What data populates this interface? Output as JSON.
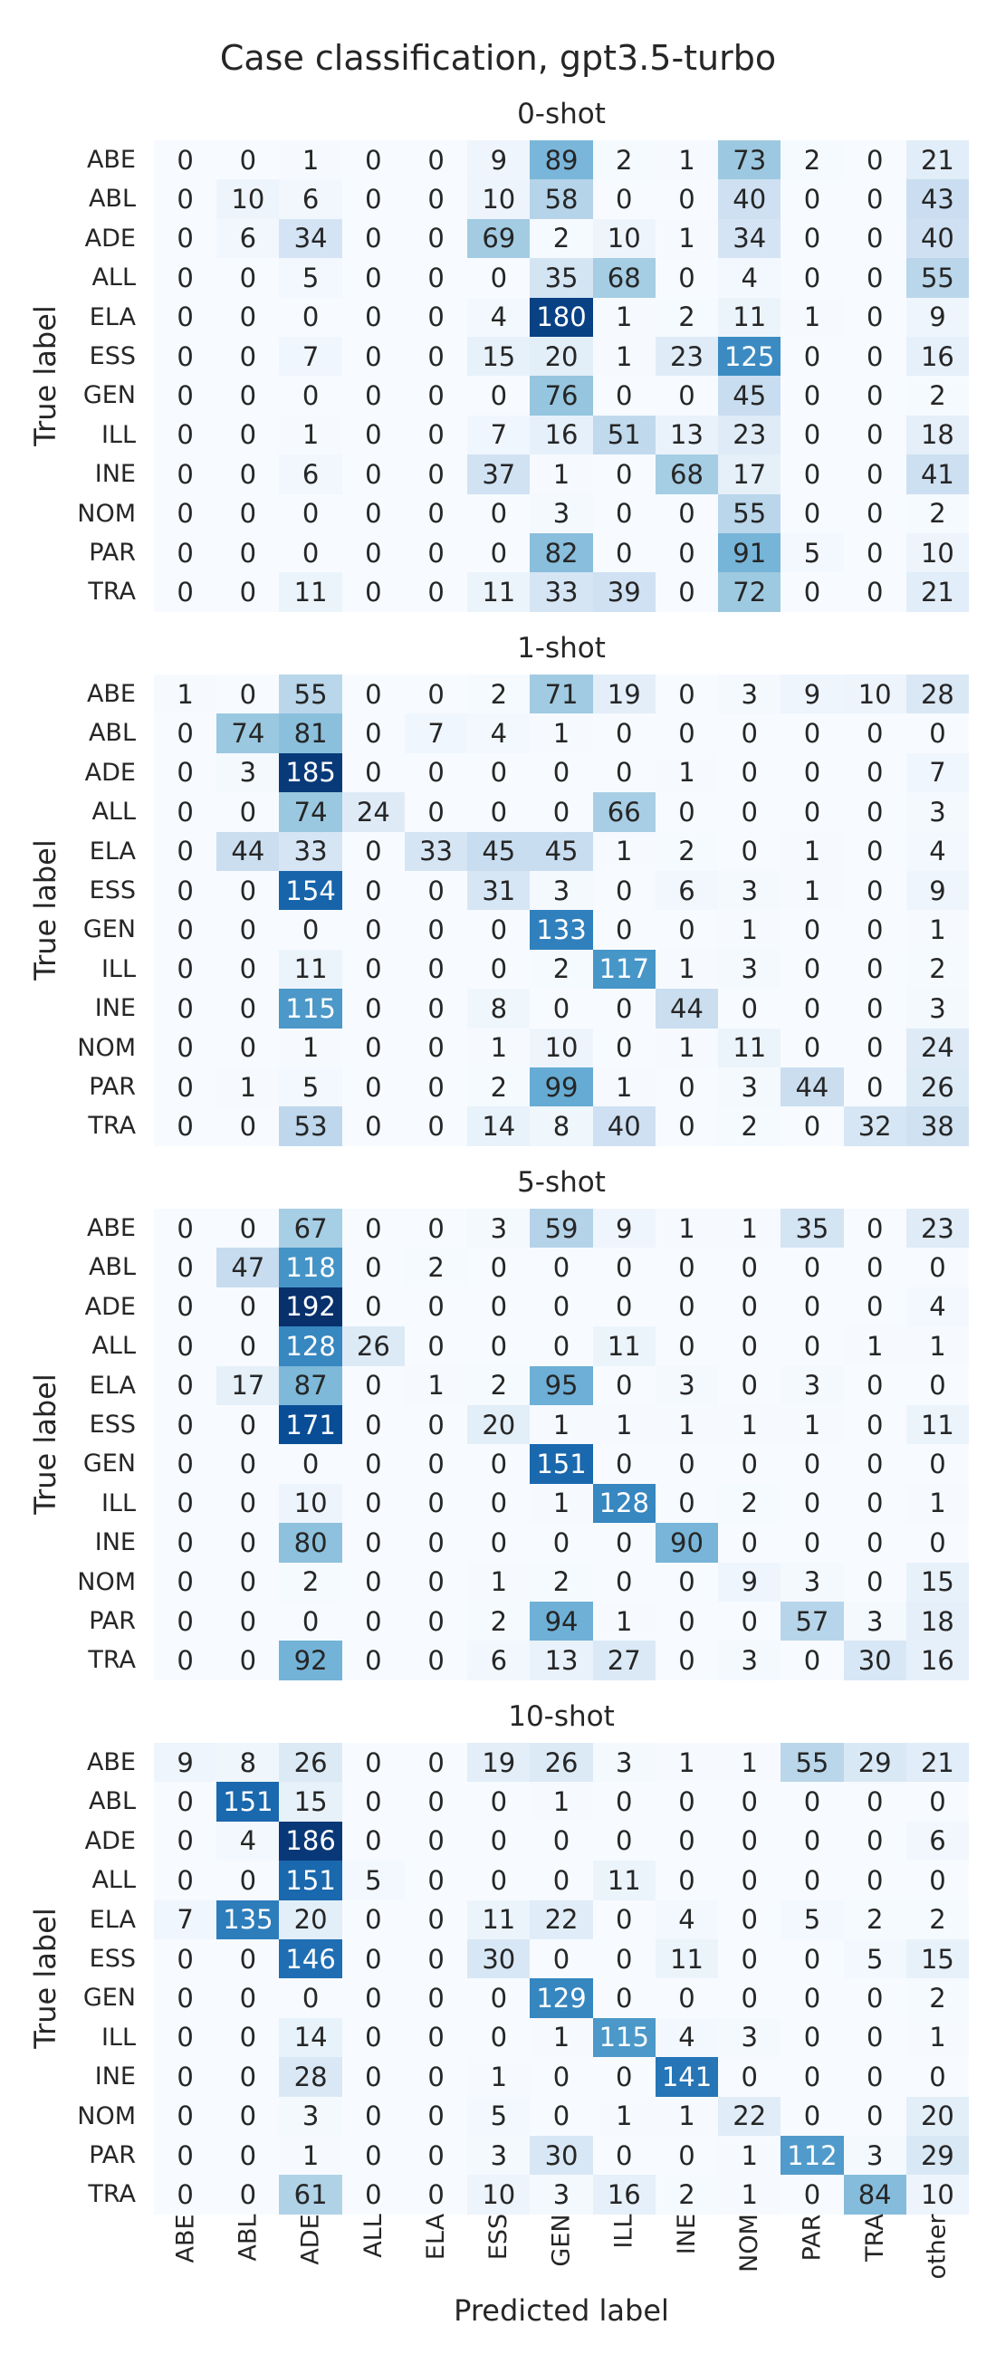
{
  "title": "Case classification, gpt3.5-turbo",
  "xlabel": "Predicted label",
  "ylabel": "True label",
  "colormap": {
    "name": "Blues",
    "low": "#f7fbff",
    "high": "#08306b"
  },
  "chart_data": {
    "type": "heatmap",
    "row_labels": [
      "ABE",
      "ABL",
      "ADE",
      "ALL",
      "ELA",
      "ESS",
      "GEN",
      "ILL",
      "INE",
      "NOM",
      "PAR",
      "TRA"
    ],
    "col_labels": [
      "ABE",
      "ABL",
      "ADE",
      "ALL",
      "ELA",
      "ESS",
      "GEN",
      "ILL",
      "INE",
      "NOM",
      "PAR",
      "TRA",
      "other"
    ],
    "color_max": 192,
    "panels": [
      {
        "title": "0-shot",
        "values": [
          [
            0,
            0,
            1,
            0,
            0,
            9,
            89,
            2,
            1,
            73,
            2,
            0,
            21
          ],
          [
            0,
            10,
            6,
            0,
            0,
            10,
            58,
            0,
            0,
            40,
            0,
            0,
            43
          ],
          [
            0,
            6,
            34,
            0,
            0,
            69,
            2,
            10,
            1,
            34,
            0,
            0,
            40
          ],
          [
            0,
            0,
            5,
            0,
            0,
            0,
            35,
            68,
            0,
            4,
            0,
            0,
            55
          ],
          [
            0,
            0,
            0,
            0,
            0,
            4,
            180,
            1,
            2,
            11,
            1,
            0,
            9
          ],
          [
            0,
            0,
            7,
            0,
            0,
            15,
            20,
            1,
            23,
            125,
            0,
            0,
            16
          ],
          [
            0,
            0,
            0,
            0,
            0,
            0,
            76,
            0,
            0,
            45,
            0,
            0,
            2
          ],
          [
            0,
            0,
            1,
            0,
            0,
            7,
            16,
            51,
            13,
            23,
            0,
            0,
            18
          ],
          [
            0,
            0,
            6,
            0,
            0,
            37,
            1,
            0,
            68,
            17,
            0,
            0,
            41
          ],
          [
            0,
            0,
            0,
            0,
            0,
            0,
            3,
            0,
            0,
            55,
            0,
            0,
            2
          ],
          [
            0,
            0,
            0,
            0,
            0,
            0,
            82,
            0,
            0,
            91,
            5,
            0,
            10
          ],
          [
            0,
            0,
            11,
            0,
            0,
            11,
            33,
            39,
            0,
            72,
            0,
            0,
            21
          ]
        ]
      },
      {
        "title": "1-shot",
        "values": [
          [
            1,
            0,
            55,
            0,
            0,
            2,
            71,
            19,
            0,
            3,
            9,
            10,
            28
          ],
          [
            0,
            74,
            81,
            0,
            7,
            4,
            1,
            0,
            0,
            0,
            0,
            0,
            0
          ],
          [
            0,
            3,
            185,
            0,
            0,
            0,
            0,
            0,
            1,
            0,
            0,
            0,
            7
          ],
          [
            0,
            0,
            74,
            24,
            0,
            0,
            0,
            66,
            0,
            0,
            0,
            0,
            3
          ],
          [
            0,
            44,
            33,
            0,
            33,
            45,
            45,
            1,
            2,
            0,
            1,
            0,
            4
          ],
          [
            0,
            0,
            154,
            0,
            0,
            31,
            3,
            0,
            6,
            3,
            1,
            0,
            9
          ],
          [
            0,
            0,
            0,
            0,
            0,
            0,
            133,
            0,
            0,
            1,
            0,
            0,
            1
          ],
          [
            0,
            0,
            11,
            0,
            0,
            0,
            2,
            117,
            1,
            3,
            0,
            0,
            2
          ],
          [
            0,
            0,
            115,
            0,
            0,
            8,
            0,
            0,
            44,
            0,
            0,
            0,
            3
          ],
          [
            0,
            0,
            1,
            0,
            0,
            1,
            10,
            0,
            1,
            11,
            0,
            0,
            24
          ],
          [
            0,
            1,
            5,
            0,
            0,
            2,
            99,
            1,
            0,
            3,
            44,
            0,
            26
          ],
          [
            0,
            0,
            53,
            0,
            0,
            14,
            8,
            40,
            0,
            2,
            0,
            32,
            38
          ]
        ]
      },
      {
        "title": "5-shot",
        "values": [
          [
            0,
            0,
            67,
            0,
            0,
            3,
            59,
            9,
            1,
            1,
            35,
            0,
            23
          ],
          [
            0,
            47,
            118,
            0,
            2,
            0,
            0,
            0,
            0,
            0,
            0,
            0,
            0
          ],
          [
            0,
            0,
            192,
            0,
            0,
            0,
            0,
            0,
            0,
            0,
            0,
            0,
            4
          ],
          [
            0,
            0,
            128,
            26,
            0,
            0,
            0,
            11,
            0,
            0,
            0,
            1,
            1
          ],
          [
            0,
            17,
            87,
            0,
            1,
            2,
            95,
            0,
            3,
            0,
            3,
            0,
            0
          ],
          [
            0,
            0,
            171,
            0,
            0,
            20,
            1,
            1,
            1,
            1,
            1,
            0,
            11
          ],
          [
            0,
            0,
            0,
            0,
            0,
            0,
            151,
            0,
            0,
            0,
            0,
            0,
            0
          ],
          [
            0,
            0,
            10,
            0,
            0,
            0,
            1,
            128,
            0,
            2,
            0,
            0,
            1
          ],
          [
            0,
            0,
            80,
            0,
            0,
            0,
            0,
            0,
            90,
            0,
            0,
            0,
            0
          ],
          [
            0,
            0,
            2,
            0,
            0,
            1,
            2,
            0,
            0,
            9,
            3,
            0,
            15
          ],
          [
            0,
            0,
            0,
            0,
            0,
            2,
            94,
            1,
            0,
            0,
            57,
            3,
            18
          ],
          [
            0,
            0,
            92,
            0,
            0,
            6,
            13,
            27,
            0,
            3,
            0,
            30,
            16
          ]
        ]
      },
      {
        "title": "10-shot",
        "values": [
          [
            9,
            8,
            26,
            0,
            0,
            19,
            26,
            3,
            1,
            1,
            55,
            29,
            21
          ],
          [
            0,
            151,
            15,
            0,
            0,
            0,
            1,
            0,
            0,
            0,
            0,
            0,
            0
          ],
          [
            0,
            4,
            186,
            0,
            0,
            0,
            0,
            0,
            0,
            0,
            0,
            0,
            6
          ],
          [
            0,
            0,
            151,
            5,
            0,
            0,
            0,
            11,
            0,
            0,
            0,
            0,
            0
          ],
          [
            7,
            135,
            20,
            0,
            0,
            11,
            22,
            0,
            4,
            0,
            5,
            2,
            2
          ],
          [
            0,
            0,
            146,
            0,
            0,
            30,
            0,
            0,
            11,
            0,
            0,
            5,
            15
          ],
          [
            0,
            0,
            0,
            0,
            0,
            0,
            129,
            0,
            0,
            0,
            0,
            0,
            2
          ],
          [
            0,
            0,
            14,
            0,
            0,
            0,
            1,
            115,
            4,
            3,
            0,
            0,
            1
          ],
          [
            0,
            0,
            28,
            0,
            0,
            1,
            0,
            0,
            141,
            0,
            0,
            0,
            0
          ],
          [
            0,
            0,
            3,
            0,
            0,
            5,
            0,
            1,
            1,
            22,
            0,
            0,
            20
          ],
          [
            0,
            0,
            1,
            0,
            0,
            3,
            30,
            0,
            0,
            1,
            112,
            3,
            29
          ],
          [
            0,
            0,
            61,
            0,
            0,
            10,
            3,
            16,
            2,
            1,
            0,
            84,
            10
          ]
        ]
      }
    ]
  }
}
